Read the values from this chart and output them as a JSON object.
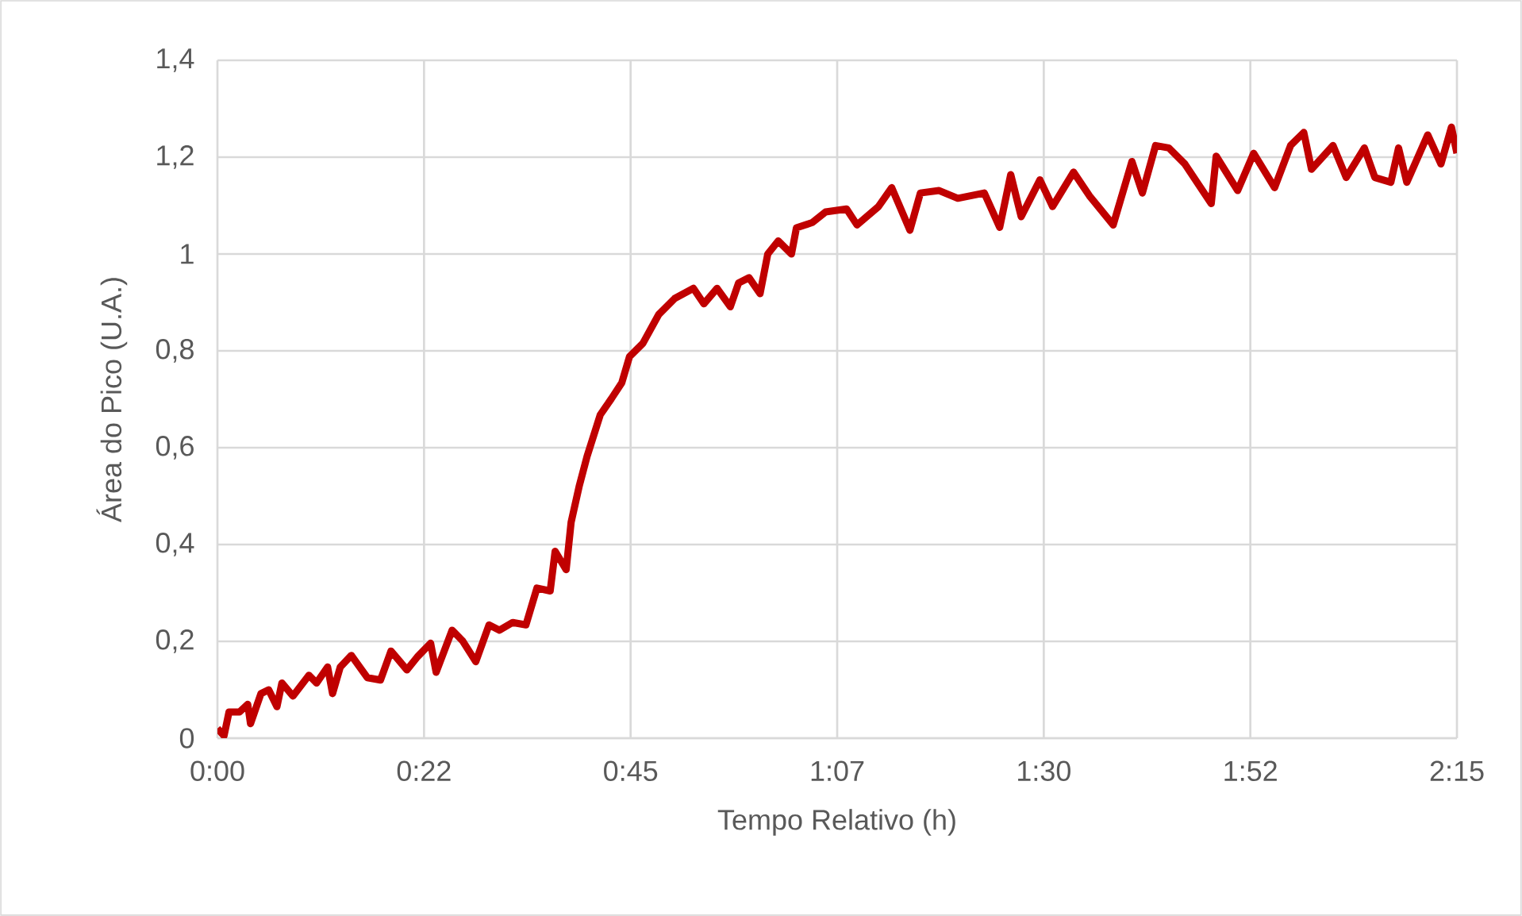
{
  "chart_data": {
    "type": "line",
    "xlabel": "Tempo  Relativo (h)",
    "ylabel": "Área do Pico (U.A.)",
    "xlim": [
      0,
      2.25
    ],
    "ylim": [
      0,
      1.4
    ],
    "xticks": [
      {
        "value": 0,
        "label": "0:00"
      },
      {
        "value": 0.375,
        "label": "0:22"
      },
      {
        "value": 0.75,
        "label": "0:45"
      },
      {
        "value": 1.125,
        "label": "1:07"
      },
      {
        "value": 1.5,
        "label": "1:30"
      },
      {
        "value": 1.875,
        "label": "1:52"
      },
      {
        "value": 2.25,
        "label": "2:15"
      }
    ],
    "yticks": [
      0,
      {
        "value": 0.2,
        "label": "0,2"
      },
      {
        "value": 0.4,
        "label": "0,4"
      },
      {
        "value": 0.6,
        "label": "0,6"
      },
      {
        "value": 0.8,
        "label": "0,8"
      },
      1,
      {
        "value": 1.2,
        "label": "1,2"
      },
      {
        "value": 1.4,
        "label": "1,4"
      }
    ],
    "grid": true,
    "marker": "none",
    "line_style": "solid",
    "series": [
      {
        "color": "#c00000",
        "x": [
          0,
          0.012,
          0.021,
          0.04,
          0.055,
          0.06,
          0.079,
          0.093,
          0.108,
          0.117,
          0.137,
          0.166,
          0.18,
          0.2,
          0.209,
          0.223,
          0.243,
          0.272,
          0.296,
          0.315,
          0.344,
          0.363,
          0.387,
          0.397,
          0.426,
          0.445,
          0.469,
          0.493,
          0.512,
          0.536,
          0.56,
          0.58,
          0.604,
          0.613,
          0.633,
          0.642,
          0.657,
          0.671,
          0.695,
          0.715,
          0.734,
          0.748,
          0.772,
          0.801,
          0.83,
          0.864,
          0.883,
          0.907,
          0.931,
          0.946,
          0.965,
          0.985,
          0.999,
          1.018,
          1.042,
          1.051,
          1.08,
          1.104,
          1.142,
          1.161,
          1.2,
          1.224,
          1.257,
          1.276,
          1.31,
          1.344,
          1.392,
          1.42,
          1.44,
          1.459,
          1.493,
          1.516,
          1.554,
          1.583,
          1.626,
          1.66,
          1.679,
          1.703,
          1.727,
          1.756,
          1.804,
          1.813,
          1.852,
          1.881,
          1.919,
          1.948,
          1.972,
          1.986,
          2.025,
          2.049,
          2.082,
          2.101,
          2.13,
          2.144,
          2.159,
          2.197,
          2.221,
          2.24,
          2.25
        ],
        "values": [
          0.02,
          0.005,
          0.054,
          0.054,
          0.07,
          0.03,
          0.092,
          0.1,
          0.065,
          0.114,
          0.087,
          0.13,
          0.114,
          0.147,
          0.092,
          0.147,
          0.171,
          0.125,
          0.12,
          0.18,
          0.141,
          0.168,
          0.196,
          0.136,
          0.223,
          0.201,
          0.158,
          0.234,
          0.223,
          0.239,
          0.234,
          0.31,
          0.304,
          0.386,
          0.348,
          0.446,
          0.522,
          0.582,
          0.668,
          0.701,
          0.734,
          0.788,
          0.815,
          0.875,
          0.908,
          0.929,
          0.897,
          0.929,
          0.891,
          0.94,
          0.951,
          0.918,
          1.0,
          1.027,
          1.0,
          1.054,
          1.065,
          1.087,
          1.093,
          1.06,
          1.098,
          1.137,
          1.049,
          1.126,
          1.131,
          1.115,
          1.126,
          1.055,
          1.164,
          1.077,
          1.153,
          1.098,
          1.169,
          1.12,
          1.06,
          1.191,
          1.126,
          1.224,
          1.219,
          1.186,
          1.104,
          1.202,
          1.131,
          1.208,
          1.137,
          1.224,
          1.251,
          1.175,
          1.224,
          1.158,
          1.219,
          1.158,
          1.148,
          1.219,
          1.148,
          1.246,
          1.186,
          1.262,
          1.208
        ]
      }
    ]
  }
}
